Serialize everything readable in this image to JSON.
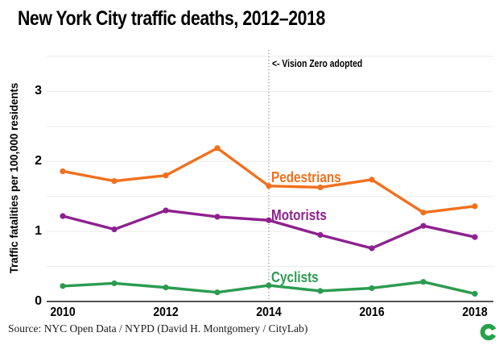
{
  "title": "New York City traffic deaths, 2012–2018",
  "annotation": "<- Vision Zero adopted",
  "source": "Source: NYC Open Data / NYPD (David H. Montgomery / CityLab)",
  "logo_name": "citylab-c-logo",
  "colors": {
    "pedestrians": "#F1701E",
    "motorists": "#8E218F",
    "cyclists": "#2B9C4F",
    "gridline": "#EAEAEA",
    "axis": "#1a1a1a",
    "vline": "#8a8a8a",
    "logo_green": "#25A149"
  },
  "chart_data": {
    "type": "line",
    "title": "New York City traffic deaths, 2012–2018",
    "xlabel": "",
    "ylabel": "Traffic fatalities per 100,000 residents",
    "x": [
      2010,
      2011,
      2012,
      2013,
      2014,
      2015,
      2016,
      2017,
      2018
    ],
    "xticks": [
      "2010",
      "2012",
      "2014",
      "2016",
      "2018"
    ],
    "yticks": [
      "0",
      "1",
      "2",
      "3"
    ],
    "ylim": [
      0,
      3.5
    ],
    "grid": true,
    "grid_step": 0.5,
    "legend_position": "inline-right-of-vline",
    "series": [
      {
        "name": "Pedestrians",
        "color": "#F1701E",
        "values": [
          1.86,
          1.72,
          1.8,
          2.19,
          1.65,
          1.63,
          1.74,
          1.27,
          1.36
        ]
      },
      {
        "name": "Motorists",
        "color": "#8E218F",
        "values": [
          1.22,
          1.03,
          1.3,
          1.21,
          1.16,
          0.95,
          0.76,
          1.08,
          0.92
        ]
      },
      {
        "name": "Cyclists",
        "color": "#2B9C4F",
        "values": [
          0.22,
          0.26,
          0.2,
          0.13,
          0.23,
          0.15,
          0.19,
          0.28,
          0.11
        ]
      }
    ],
    "vline": {
      "x": 2014,
      "label": "<- Vision Zero adopted",
      "style": "dotted"
    }
  }
}
